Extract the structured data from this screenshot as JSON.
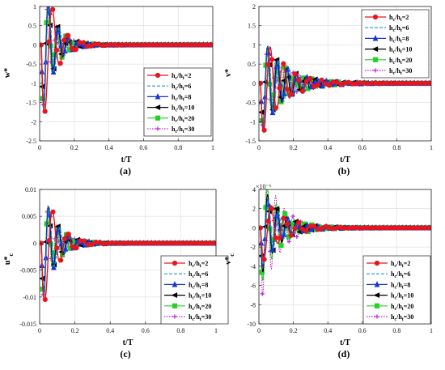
{
  "chart_data": [
    {
      "type": "line",
      "panel": "(a)",
      "xlabel": "t/T",
      "ylabel": "w*",
      "xlim": [
        0,
        1
      ],
      "ylim": [
        -2.5,
        1
      ],
      "xticks": [
        "0",
        "0.2",
        "0.4",
        "0.6",
        "0.8",
        "1"
      ],
      "yticks": [
        "1",
        "0.5",
        "0",
        "-0.5",
        "-1",
        "-1.5",
        "-2",
        "-2.5"
      ],
      "legend_position": "lower-right",
      "series": [
        {
          "name": "hc/ht=2",
          "color": "#e8141e",
          "marker": "circle",
          "amp": 2.45,
          "period": 0.085,
          "decay": 14
        },
        {
          "name": "hc/ht=6",
          "color": "#1f97c8",
          "marker": "none",
          "amp": 2.2,
          "period": 0.06,
          "decay": 15
        },
        {
          "name": "hc/ht=8",
          "color": "#1535d8",
          "marker": "triangle",
          "amp": 2.15,
          "period": 0.057,
          "decay": 15
        },
        {
          "name": "hc/ht=10",
          "color": "#000000",
          "marker": "left-triangle",
          "amp": 2.1,
          "period": 0.055,
          "decay": 15
        },
        {
          "name": "hc/ht=20",
          "color": "#26d126",
          "marker": "square",
          "amp": 2.05,
          "period": 0.052,
          "decay": 15
        },
        {
          "name": "hc/ht=30",
          "color": "#c020d8",
          "marker": "plus",
          "amp": 2.0,
          "period": 0.05,
          "decay": 15
        }
      ]
    },
    {
      "type": "line",
      "panel": "(b)",
      "xlabel": "t/T",
      "ylabel": "v*",
      "xlim": [
        0,
        1
      ],
      "ylim": [
        -1.5,
        2
      ],
      "xticks": [
        "0",
        "0.2",
        "0.4",
        "0.6",
        "0.8",
        "1"
      ],
      "yticks": [
        "2",
        "1.5",
        "1",
        "0.5",
        "0",
        "-0.5",
        "-1",
        "-1.5"
      ],
      "legend_position": "top-right",
      "series": [
        {
          "name": "hc/ht=2",
          "color": "#e8141e",
          "marker": "circle",
          "amp": 1.55,
          "period": 0.075,
          "decay": 8
        },
        {
          "name": "hc/ht=6",
          "color": "#1f97c8",
          "marker": "none",
          "amp": 1.45,
          "period": 0.06,
          "decay": 8
        },
        {
          "name": "hc/ht=8",
          "color": "#1535d8",
          "marker": "triangle",
          "amp": 1.42,
          "period": 0.057,
          "decay": 8
        },
        {
          "name": "hc/ht=10",
          "color": "#000000",
          "marker": "left-triangle",
          "amp": 1.4,
          "period": 0.055,
          "decay": 8
        },
        {
          "name": "hc/ht=20",
          "color": "#26d126",
          "marker": "square",
          "amp": 1.35,
          "period": 0.052,
          "decay": 8
        },
        {
          "name": "hc/ht=30",
          "color": "#c020d8",
          "marker": "plus",
          "amp": 1.3,
          "period": 0.05,
          "decay": 8
        }
      ]
    },
    {
      "type": "line",
      "panel": "(c)",
      "xlabel": "t/T",
      "ylabel": "u*c",
      "xlim": [
        0,
        1
      ],
      "ylim": [
        -0.015,
        0.01
      ],
      "xticks": [
        "0",
        "0.2",
        "0.4",
        "0.6",
        "0.8",
        "1"
      ],
      "yticks": [
        "0.01",
        "0.005",
        "0",
        "-0.005",
        "-0.01",
        "-0.015"
      ],
      "legend_position": "lower-right",
      "series": [
        {
          "name": "hc/ht=2",
          "color": "#e8141e",
          "marker": "circle",
          "amp": 0.0145,
          "period": 0.085,
          "decay": 13
        },
        {
          "name": "hc/ht=6",
          "color": "#1f97c8",
          "marker": "none",
          "amp": 0.013,
          "period": 0.06,
          "decay": 14
        },
        {
          "name": "hc/ht=8",
          "color": "#1535d8",
          "marker": "triangle",
          "amp": 0.0128,
          "period": 0.057,
          "decay": 14
        },
        {
          "name": "hc/ht=10",
          "color": "#000000",
          "marker": "left-triangle",
          "amp": 0.0126,
          "period": 0.055,
          "decay": 14
        },
        {
          "name": "hc/ht=20",
          "color": "#26d126",
          "marker": "square",
          "amp": 0.0124,
          "period": 0.052,
          "decay": 14
        },
        {
          "name": "hc/ht=30",
          "color": "#c020d8",
          "marker": "plus",
          "amp": 0.0122,
          "period": 0.05,
          "decay": 14
        }
      ]
    },
    {
      "type": "line",
      "panel": "(d)",
      "xlabel": "t/T",
      "ylabel": "v*c",
      "exponent_label": "×10⁻⁶",
      "xlim": [
        0,
        1
      ],
      "ylim": [
        -10,
        4
      ],
      "xticks": [
        "0",
        "0.2",
        "0.4",
        "0.6",
        "0.8",
        "1"
      ],
      "yticks": [
        "4",
        "2",
        "0",
        "-2",
        "-4",
        "-6",
        "-8",
        "-10"
      ],
      "legend_position": "lower-right",
      "series": [
        {
          "name": "hc/ht=2",
          "color": "#e8141e",
          "marker": "circle",
          "amp": 4.2,
          "period": 0.08,
          "decay": 9
        },
        {
          "name": "hc/ht=6",
          "color": "#1f97c8",
          "marker": "none",
          "amp": 4.6,
          "period": 0.06,
          "decay": 10
        },
        {
          "name": "hc/ht=8",
          "color": "#1535d8",
          "marker": "triangle",
          "amp": 4.8,
          "period": 0.057,
          "decay": 10
        },
        {
          "name": "hc/ht=10",
          "color": "#000000",
          "marker": "left-triangle",
          "amp": 5.5,
          "period": 0.055,
          "decay": 10
        },
        {
          "name": "hc/ht=20",
          "color": "#26d126",
          "marker": "square",
          "amp": 6.5,
          "period": 0.052,
          "decay": 10
        },
        {
          "name": "hc/ht=30",
          "color": "#c020d8",
          "marker": "plus",
          "amp": 8.4,
          "period": 0.05,
          "decay": 10
        }
      ]
    }
  ],
  "legend_labels": [
    {
      "h": "h",
      "c": "c",
      "slash": "/h",
      "t": "t",
      "val": "=2"
    },
    {
      "h": "h",
      "c": "c",
      "slash": "/h",
      "t": "t",
      "val": "=6"
    },
    {
      "h": "h",
      "c": "c",
      "slash": "/h",
      "t": "t",
      "val": "=8"
    },
    {
      "h": "h",
      "c": "c",
      "slash": "/h",
      "t": "t",
      "val": "=10"
    },
    {
      "h": "h",
      "c": "c",
      "slash": "/h",
      "t": "t",
      "val": "=20"
    },
    {
      "h": "h",
      "c": "c",
      "slash": "/h",
      "t": "t",
      "val": "=30"
    }
  ]
}
